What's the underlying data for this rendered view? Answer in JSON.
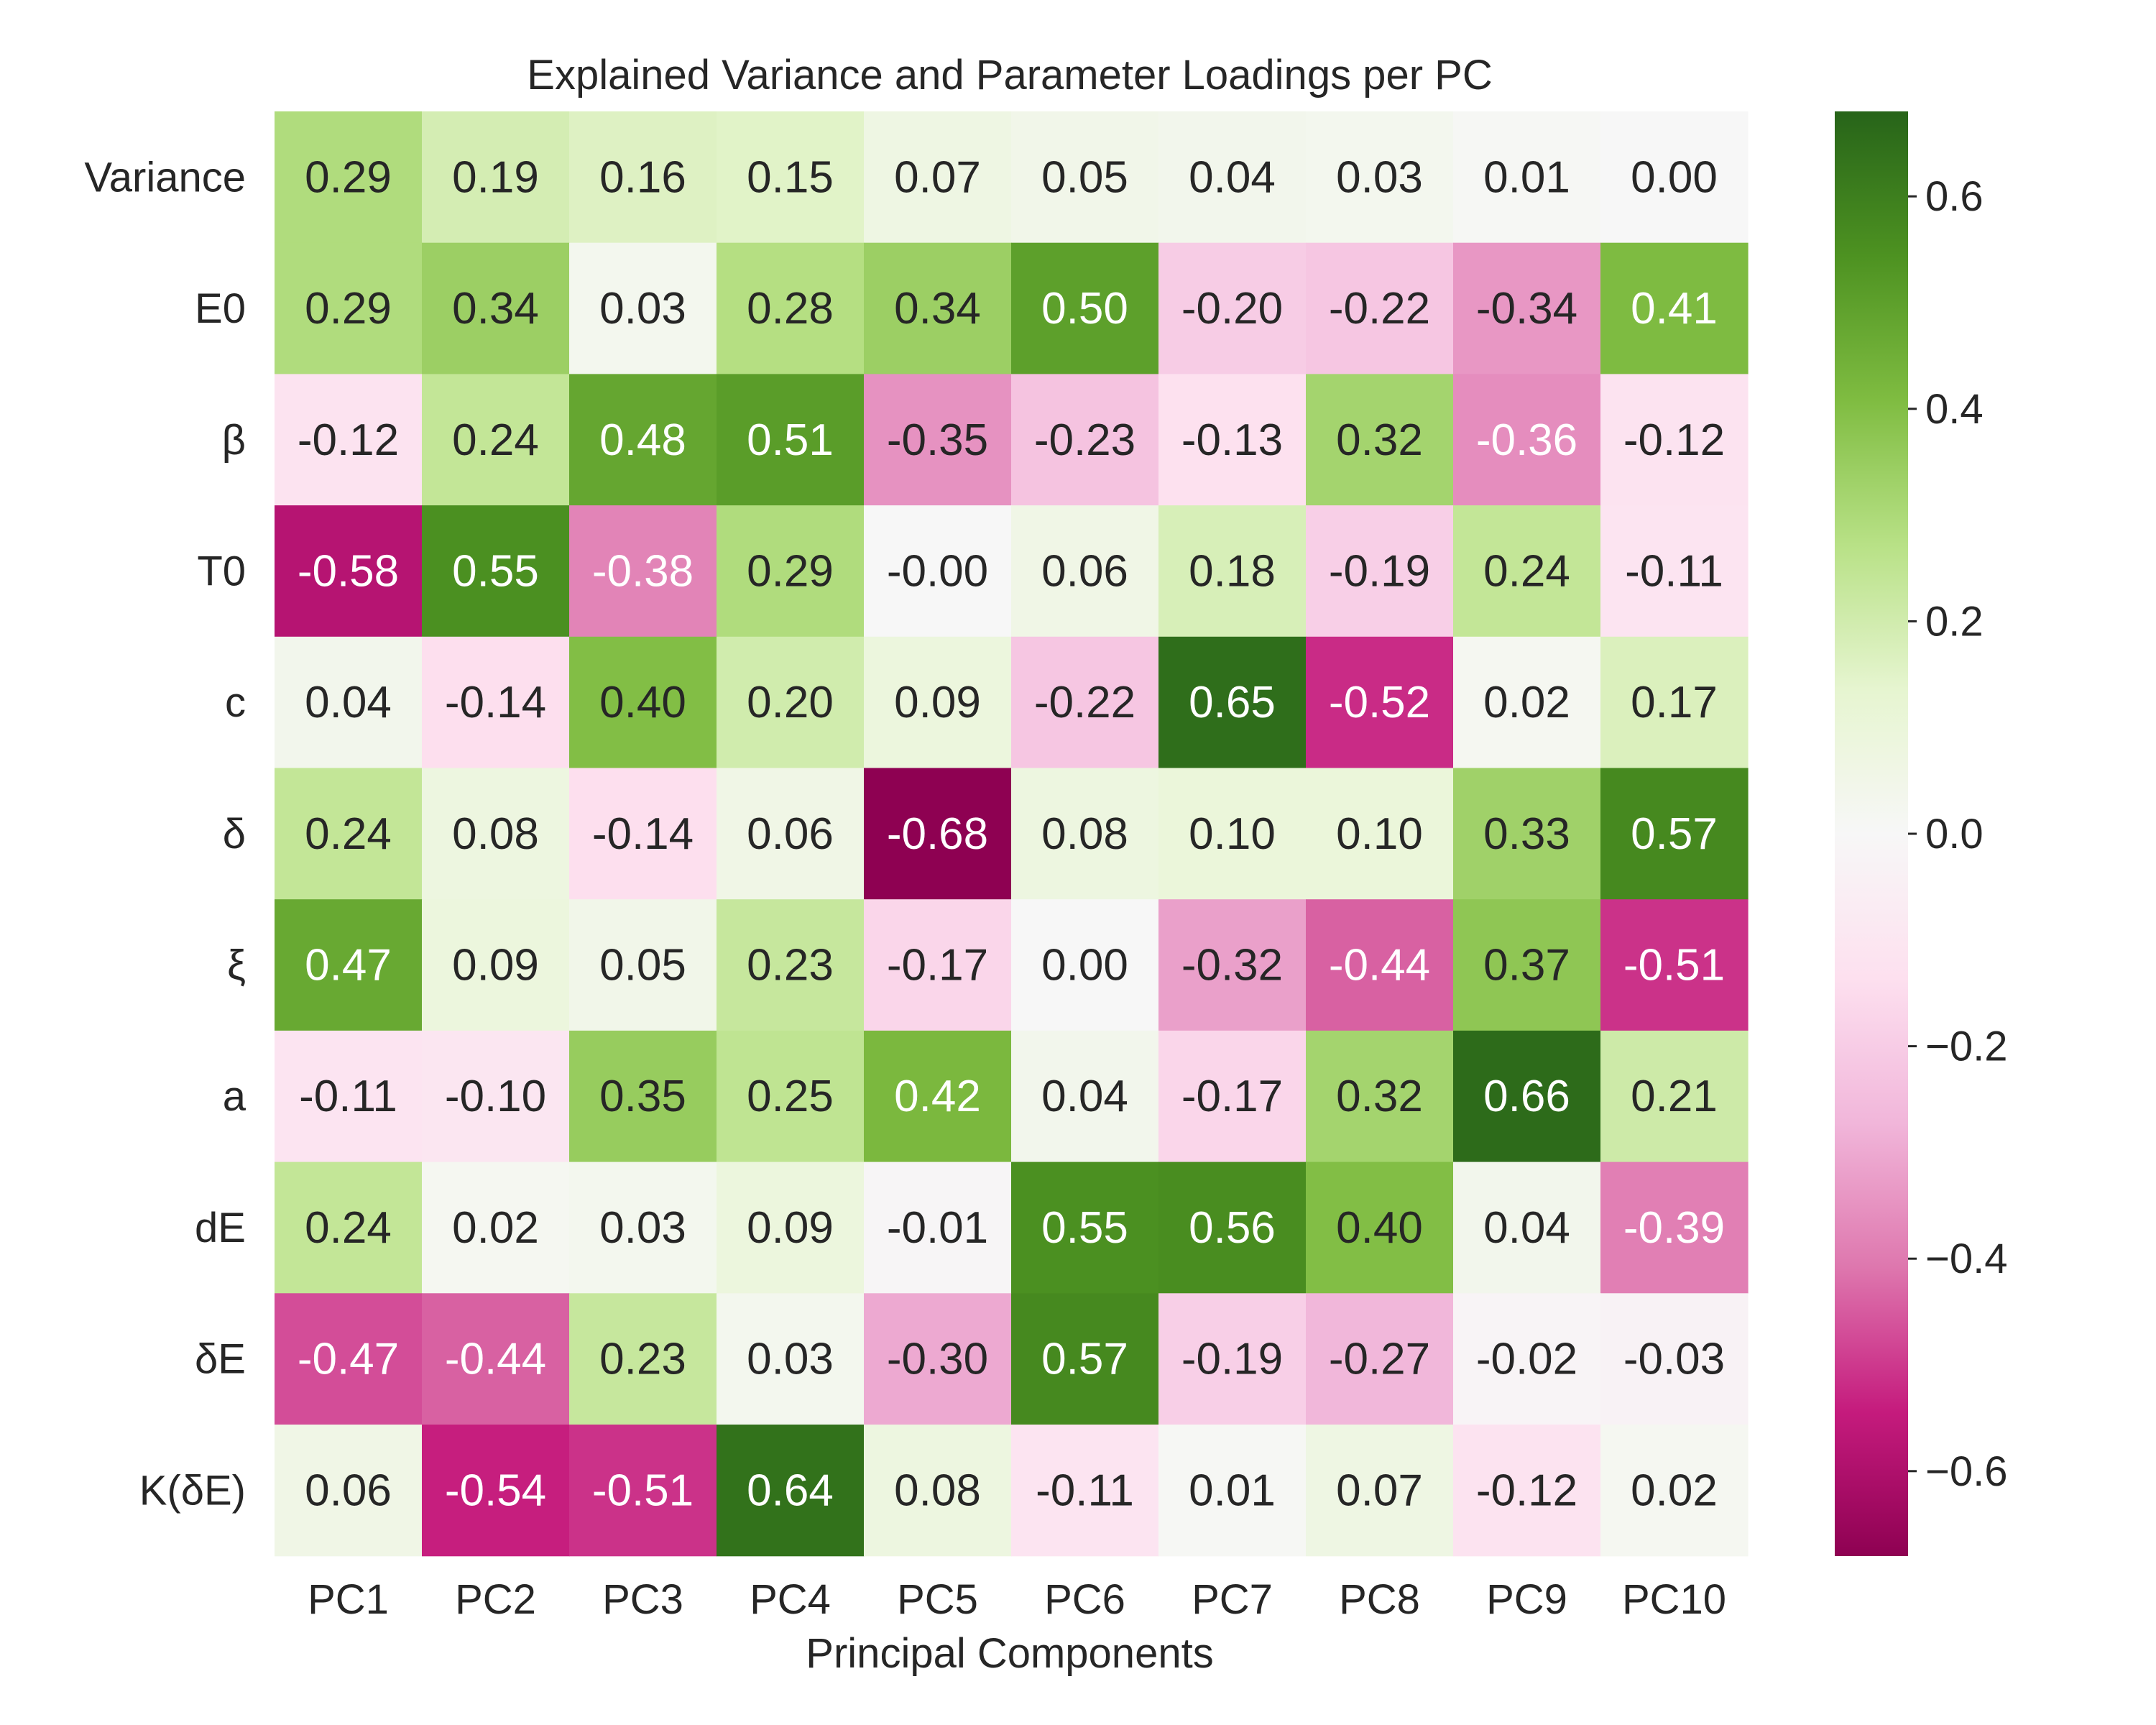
{
  "chart_data": {
    "type": "heatmap",
    "title": "Explained Variance and Parameter Loadings per PC",
    "xlabel": "Principal Components",
    "ylabel": "",
    "x_categories": [
      "PC1",
      "PC2",
      "PC3",
      "PC4",
      "PC5",
      "PC6",
      "PC7",
      "PC8",
      "PC9",
      "PC10"
    ],
    "y_categories": [
      "Variance",
      "E0",
      "β",
      "T0",
      "c",
      "δ",
      "ξ",
      "a",
      "dE",
      "δE",
      "K(δE)"
    ],
    "values": [
      [
        0.29,
        0.19,
        0.16,
        0.15,
        0.07,
        0.05,
        0.04,
        0.03,
        0.01,
        0.0
      ],
      [
        0.29,
        0.34,
        0.03,
        0.28,
        0.34,
        0.5,
        -0.2,
        -0.22,
        -0.34,
        0.41
      ],
      [
        -0.12,
        0.24,
        0.48,
        0.51,
        -0.35,
        -0.23,
        -0.13,
        0.32,
        -0.36,
        -0.12
      ],
      [
        -0.58,
        0.55,
        -0.38,
        0.29,
        -0.0,
        0.06,
        0.18,
        -0.19,
        0.24,
        -0.11
      ],
      [
        0.04,
        -0.14,
        0.4,
        0.2,
        0.09,
        -0.22,
        0.65,
        -0.52,
        0.02,
        0.17
      ],
      [
        0.24,
        0.08,
        -0.14,
        0.06,
        -0.68,
        0.08,
        0.1,
        0.1,
        0.33,
        0.57
      ],
      [
        0.47,
        0.09,
        0.05,
        0.23,
        -0.17,
        0.0,
        -0.32,
        -0.44,
        0.37,
        -0.51
      ],
      [
        -0.11,
        -0.1,
        0.35,
        0.25,
        0.42,
        0.04,
        -0.17,
        0.32,
        0.66,
        0.21
      ],
      [
        0.24,
        0.02,
        0.03,
        0.09,
        -0.01,
        0.55,
        0.56,
        0.4,
        0.04,
        -0.39
      ],
      [
        -0.47,
        -0.44,
        0.23,
        0.03,
        -0.3,
        0.57,
        -0.19,
        -0.27,
        -0.02,
        -0.03
      ],
      [
        0.06,
        -0.54,
        -0.51,
        0.64,
        0.08,
        -0.11,
        0.01,
        0.07,
        -0.12,
        0.02
      ]
    ],
    "value_labels": [
      [
        "0.29",
        "0.19",
        "0.16",
        "0.15",
        "0.07",
        "0.05",
        "0.04",
        "0.03",
        "0.01",
        "0.00"
      ],
      [
        "0.29",
        "0.34",
        "0.03",
        "0.28",
        "0.34",
        "0.50",
        "-0.20",
        "-0.22",
        "-0.34",
        "0.41"
      ],
      [
        "-0.12",
        "0.24",
        "0.48",
        "0.51",
        "-0.35",
        "-0.23",
        "-0.13",
        "0.32",
        "-0.36",
        "-0.12"
      ],
      [
        "-0.58",
        "0.55",
        "-0.38",
        "0.29",
        "-0.00",
        "0.06",
        "0.18",
        "-0.19",
        "0.24",
        "-0.11"
      ],
      [
        "0.04",
        "-0.14",
        "0.40",
        "0.20",
        "0.09",
        "-0.22",
        "0.65",
        "-0.52",
        "0.02",
        "0.17"
      ],
      [
        "0.24",
        "0.08",
        "-0.14",
        "0.06",
        "-0.68",
        "0.08",
        "0.10",
        "0.10",
        "0.33",
        "0.57"
      ],
      [
        "0.47",
        "0.09",
        "0.05",
        "0.23",
        "-0.17",
        "0.00",
        "-0.32",
        "-0.44",
        "0.37",
        "-0.51"
      ],
      [
        "-0.11",
        "-0.10",
        "0.35",
        "0.25",
        "0.42",
        "0.04",
        "-0.17",
        "0.32",
        "0.66",
        "0.21"
      ],
      [
        "0.24",
        "0.02",
        "0.03",
        "0.09",
        "-0.01",
        "0.55",
        "0.56",
        "0.40",
        "0.04",
        "-0.39"
      ],
      [
        "-0.47",
        "-0.44",
        "0.23",
        "0.03",
        "-0.30",
        "0.57",
        "-0.19",
        "-0.27",
        "-0.02",
        "-0.03"
      ],
      [
        "0.06",
        "-0.54",
        "-0.51",
        "0.64",
        "0.08",
        "-0.11",
        "0.01",
        "0.07",
        "-0.12",
        "0.02"
      ]
    ],
    "colormap": "PiYG",
    "color_range": [
      -0.68,
      0.68
    ],
    "colorbar_ticks": [
      0.6,
      0.4,
      0.2,
      0.0,
      -0.2,
      -0.4,
      -0.6
    ],
    "colorbar_tick_labels": [
      "0.6",
      "0.4",
      "0.2",
      "0.0",
      "−0.2",
      "−0.4",
      "−0.6"
    ],
    "colors": {
      "min": "#8e0152",
      "mid": "#f7f7f7",
      "max": "#276419",
      "text_dark": "#262626",
      "text_light": "#ffffff"
    },
    "grid": false,
    "legend": "colorbar-right"
  }
}
